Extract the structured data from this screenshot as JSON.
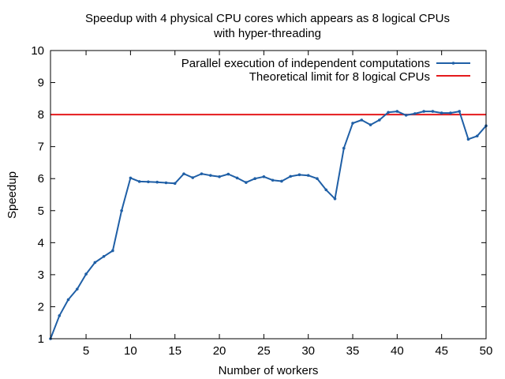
{
  "chart_data": {
    "type": "line",
    "title_lines": [
      "Speedup with 4 physical CPU cores which appears as 8 logical CPUs",
      "with hyper-threading"
    ],
    "xlabel": "Number of workers",
    "ylabel": "Speedup",
    "xlim": [
      1,
      50
    ],
    "ylim": [
      1,
      10
    ],
    "xticks": [
      5,
      10,
      15,
      20,
      25,
      30,
      35,
      40,
      45,
      50
    ],
    "yticks": [
      1,
      2,
      3,
      4,
      5,
      6,
      7,
      8,
      9,
      10
    ],
    "grid": false,
    "legend_position": "top-right",
    "series": [
      {
        "name": "Parallel execution of independent computations",
        "color": "#1f5fa6",
        "marker": "point",
        "x": [
          1,
          2,
          3,
          4,
          5,
          6,
          7,
          8,
          9,
          10,
          11,
          12,
          13,
          14,
          15,
          16,
          17,
          18,
          19,
          20,
          21,
          22,
          23,
          24,
          25,
          26,
          27,
          28,
          29,
          30,
          31,
          32,
          33,
          34,
          35,
          36,
          37,
          38,
          39,
          40,
          41,
          42,
          43,
          44,
          45,
          46,
          47,
          48,
          49,
          50
        ],
        "y": [
          1.0,
          1.72,
          2.22,
          2.55,
          3.02,
          3.38,
          3.57,
          3.75,
          5.0,
          6.02,
          5.91,
          5.9,
          5.89,
          5.87,
          5.85,
          6.15,
          6.03,
          6.15,
          6.1,
          6.06,
          6.14,
          6.02,
          5.88,
          6.0,
          6.06,
          5.95,
          5.92,
          6.07,
          6.12,
          6.1,
          6.0,
          5.65,
          5.37,
          6.95,
          7.73,
          7.83,
          7.68,
          7.83,
          8.07,
          8.1,
          7.98,
          8.03,
          8.1,
          8.1,
          8.05,
          8.05,
          8.1,
          7.23,
          7.33,
          7.65
        ]
      },
      {
        "name": "Theoretical limit for 8 logical CPUs",
        "color": "#e41a1c",
        "type": "hline",
        "y": 8
      }
    ]
  }
}
